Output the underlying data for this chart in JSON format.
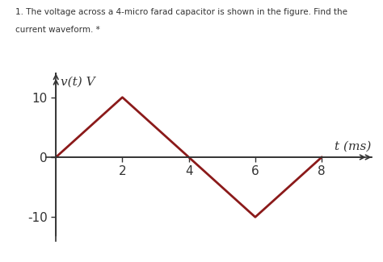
{
  "title_line1": "1. The voltage across a 4-micro farad capacitor is shown in the figure. Find the",
  "title_line2": "current waveform. *",
  "title_color": "#333333",
  "title_highlight_color": "#1a5fa8",
  "waveform_x": [
    0,
    2,
    4,
    6,
    8
  ],
  "waveform_y": [
    0,
    10,
    0,
    -10,
    0
  ],
  "waveform_color": "#8b1a1a",
  "waveform_linewidth": 2.0,
  "xlabel": "t (ms)",
  "ylabel": "v(t) V",
  "xticks": [
    2,
    4,
    6,
    8
  ],
  "yticks": [
    -10,
    0,
    10
  ],
  "xlim": [
    -0.3,
    9.5
  ],
  "ylim": [
    -14,
    14
  ],
  "background_color": "#ffffff",
  "axis_color": "#333333",
  "tick_label_fontsize": 11,
  "axis_label_fontsize": 11
}
